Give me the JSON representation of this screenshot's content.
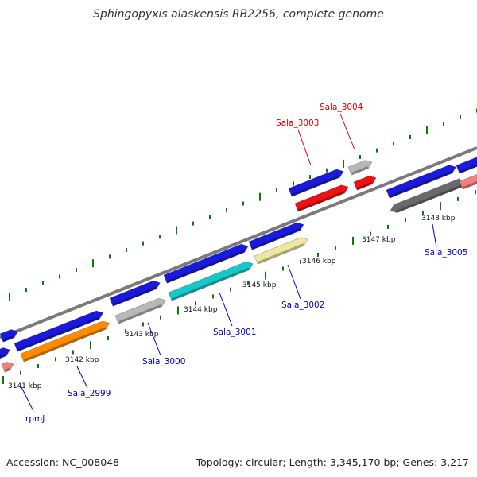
{
  "title": "Sphingopyxis alaskensis RB2256, complete genome",
  "footer": {
    "accession": "Accession: NC_008048",
    "summary": "Topology: circular; Length: 3,345,170 bp; Genes: 3,217"
  },
  "colors": {
    "blue": "#1a1adc",
    "red": "#ee1111",
    "gray": "#b8b8b8",
    "orange": "#ff8c00",
    "cyan": "#18c8c8",
    "khaki": "#eee8a0",
    "pink": "#f08080",
    "darkgray": "#6a6a6a",
    "tick": "#0b7a0b",
    "label_blue": "#0000cc",
    "label_red": "#dd0000"
  },
  "kbp_labels": [
    "3141 kbp",
    "3142 kbp",
    "3143 kbp",
    "3144 kbp",
    "3145 kbp",
    "3146 kbp",
    "3147 kbp",
    "3148 kbp"
  ],
  "gene_labels": [
    {
      "text": "rpmJ",
      "color": "label_blue"
    },
    {
      "text": "Sala_2999",
      "color": "label_blue"
    },
    {
      "text": "Sala_3000",
      "color": "label_blue"
    },
    {
      "text": "Sala_3001",
      "color": "label_blue"
    },
    {
      "text": "Sala_3002",
      "color": "label_blue"
    },
    {
      "text": "Sala_3003",
      "color": "label_red"
    },
    {
      "text": "Sala_3004",
      "color": "label_red"
    },
    {
      "text": "Sala_3005",
      "color": "label_blue"
    }
  ]
}
